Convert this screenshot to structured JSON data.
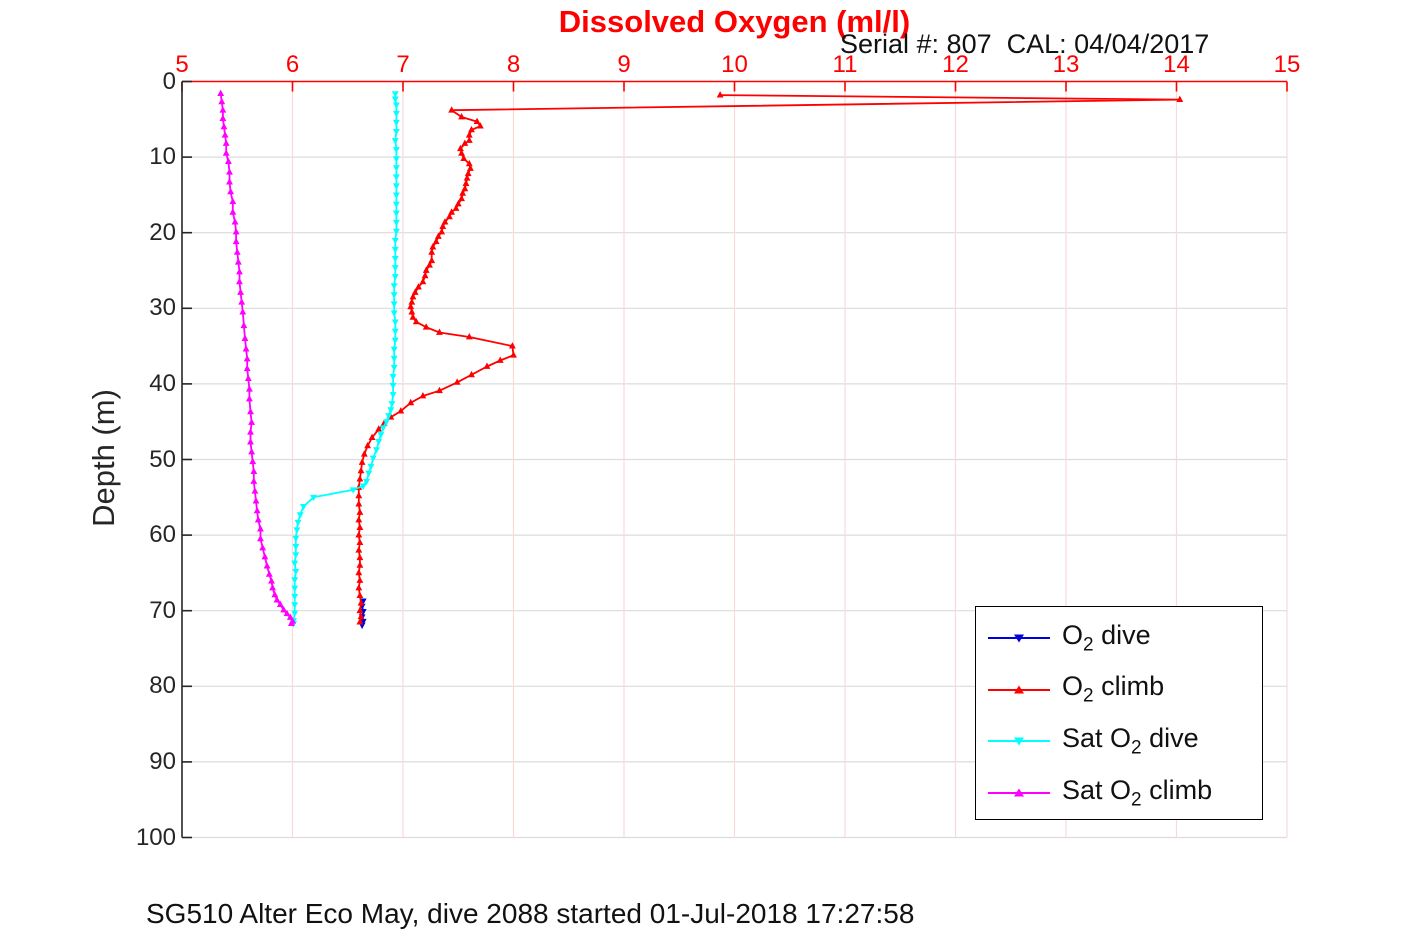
{
  "figure": {
    "title": "Dissolved Oxygen (ml/l)",
    "serial_annotation": "Serial #: 807  CAL: 04/04/2017",
    "caption": "SG510 Alter Eco May, dive 2088 started 01-Jul-2018 17:27:58"
  },
  "colors": {
    "x_axis": "#ff0000",
    "y_axis": "#262626",
    "x_grid": "#fbd9d9",
    "y_grid": "#dcdcdc",
    "o2_dive": "#0000dd",
    "o2_climb": "#ff0000",
    "sat_o2_dive": "#00ffff",
    "sat_o2_climb": "#ff00ff"
  },
  "legend": {
    "entries": [
      {
        "id": "o2-dive",
        "color": "#0000dd",
        "marker": "down",
        "prefix": "O",
        "sub": "2",
        "suffix": " dive"
      },
      {
        "id": "o2-climb",
        "color": "#ff0000",
        "marker": "up",
        "prefix": "O",
        "sub": "2",
        "suffix": " climb"
      },
      {
        "id": "sat-o2-dive",
        "color": "#00ffff",
        "marker": "down",
        "prefix": "Sat O",
        "sub": "2",
        "suffix": " dive"
      },
      {
        "id": "sat-o2-climb",
        "color": "#ff00ff",
        "marker": "up",
        "prefix": "Sat O",
        "sub": "2",
        "suffix": " climb"
      }
    ]
  },
  "chart_data": {
    "type": "line",
    "title": "Dissolved Oxygen (ml/l)",
    "xlabel": "Dissolved Oxygen (ml/l)",
    "ylabel": "Depth (m)",
    "xlim": [
      5,
      15
    ],
    "ylim": [
      0,
      100
    ],
    "y_axis_reversed": true,
    "x_ticks": [
      5,
      6,
      7,
      8,
      9,
      10,
      11,
      12,
      13,
      14,
      15
    ],
    "y_ticks": [
      0,
      10,
      20,
      30,
      40,
      50,
      60,
      70,
      80,
      90,
      100
    ],
    "grid": true,
    "legend_position": "inside lower right",
    "series": [
      {
        "name": "O2 dive",
        "id": "o2-dive",
        "color": "#0000dd",
        "marker": "down",
        "points": [
          [
            6.64,
            68.7
          ],
          [
            6.63,
            69.4
          ],
          [
            6.64,
            70.1
          ],
          [
            6.63,
            70.8
          ],
          [
            6.64,
            71.4
          ],
          [
            6.63,
            71.9
          ]
        ]
      },
      {
        "name": "O2 climb",
        "id": "o2-climb",
        "color": "#ff0000",
        "marker": "up",
        "points": [
          [
            9.87,
            1.8
          ],
          [
            14.03,
            2.4
          ],
          [
            7.44,
            3.8
          ],
          [
            7.53,
            4.7
          ],
          [
            7.67,
            5.3
          ],
          [
            7.7,
            5.9
          ],
          [
            7.62,
            6.4
          ],
          [
            7.6,
            7.1
          ],
          [
            7.6,
            7.8
          ],
          [
            7.56,
            8.2
          ],
          [
            7.52,
            8.9
          ],
          [
            7.53,
            9.5
          ],
          [
            7.55,
            10.2
          ],
          [
            7.6,
            10.9
          ],
          [
            7.61,
            11.5
          ],
          [
            7.59,
            12.2
          ],
          [
            7.58,
            12.8
          ],
          [
            7.57,
            13.5
          ],
          [
            7.56,
            14.2
          ],
          [
            7.54,
            14.8
          ],
          [
            7.53,
            15.5
          ],
          [
            7.5,
            16.2
          ],
          [
            7.48,
            16.8
          ],
          [
            7.44,
            17.3
          ],
          [
            7.42,
            17.9
          ],
          [
            7.38,
            18.6
          ],
          [
            7.36,
            19.2
          ],
          [
            7.35,
            19.9
          ],
          [
            7.32,
            20.5
          ],
          [
            7.3,
            21.2
          ],
          [
            7.27,
            21.9
          ],
          [
            7.26,
            22.6
          ],
          [
            7.26,
            23.7
          ],
          [
            7.24,
            24.3
          ],
          [
            7.21,
            25.0
          ],
          [
            7.2,
            25.7
          ],
          [
            7.18,
            26.5
          ],
          [
            7.14,
            27.2
          ],
          [
            7.11,
            27.9
          ],
          [
            7.09,
            28.5
          ],
          [
            7.08,
            29.2
          ],
          [
            7.07,
            29.8
          ],
          [
            7.08,
            30.5
          ],
          [
            7.09,
            31.2
          ],
          [
            7.12,
            31.8
          ],
          [
            7.21,
            32.5
          ],
          [
            7.33,
            33.2
          ],
          [
            7.6,
            33.8
          ],
          [
            7.99,
            35.0
          ],
          [
            8.0,
            36.2
          ],
          [
            7.88,
            36.9
          ],
          [
            7.76,
            37.7
          ],
          [
            7.62,
            38.8
          ],
          [
            7.49,
            39.8
          ],
          [
            7.33,
            40.9
          ],
          [
            7.18,
            41.6
          ],
          [
            7.07,
            42.5
          ],
          [
            6.98,
            43.6
          ],
          [
            6.89,
            44.4
          ],
          [
            6.83,
            45.2
          ],
          [
            6.78,
            46.0
          ],
          [
            6.72,
            47.1
          ],
          [
            6.68,
            48.2
          ],
          [
            6.65,
            49.3
          ],
          [
            6.63,
            50.4
          ],
          [
            6.62,
            51.5
          ],
          [
            6.61,
            52.6
          ],
          [
            6.6,
            53.7
          ],
          [
            6.6,
            54.8
          ],
          [
            6.6,
            55.9
          ],
          [
            6.61,
            57.0
          ],
          [
            6.6,
            58.0
          ],
          [
            6.61,
            59.0
          ],
          [
            6.6,
            60.0
          ],
          [
            6.61,
            61.0
          ],
          [
            6.6,
            62.0
          ],
          [
            6.61,
            63.0
          ],
          [
            6.61,
            64.0
          ],
          [
            6.6,
            65.0
          ],
          [
            6.61,
            66.0
          ],
          [
            6.6,
            67.0
          ],
          [
            6.61,
            68.0
          ],
          [
            6.62,
            69.0
          ],
          [
            6.61,
            70.0
          ],
          [
            6.62,
            70.8
          ],
          [
            6.61,
            71.5
          ]
        ]
      },
      {
        "name": "Sat O2 dive",
        "id": "sat-o2-dive",
        "color": "#00ffff",
        "marker": "down",
        "points": [
          [
            6.93,
            1.6
          ],
          [
            6.93,
            2.3
          ],
          [
            6.94,
            3.1
          ],
          [
            6.94,
            4.2
          ],
          [
            6.94,
            5.4
          ],
          [
            6.94,
            6.6
          ],
          [
            6.93,
            7.8
          ],
          [
            6.94,
            9.0
          ],
          [
            6.94,
            10.2
          ],
          [
            6.94,
            11.4
          ],
          [
            6.94,
            12.6
          ],
          [
            6.94,
            13.8
          ],
          [
            6.94,
            15.0
          ],
          [
            6.94,
            16.2
          ],
          [
            6.94,
            17.4
          ],
          [
            6.94,
            18.6
          ],
          [
            6.94,
            19.8
          ],
          [
            6.93,
            21.0
          ],
          [
            6.93,
            22.2
          ],
          [
            6.93,
            23.4
          ],
          [
            6.93,
            24.6
          ],
          [
            6.93,
            25.8
          ],
          [
            6.92,
            27.0
          ],
          [
            6.92,
            28.2
          ],
          [
            6.92,
            29.4
          ],
          [
            6.92,
            30.6
          ],
          [
            6.93,
            31.8
          ],
          [
            6.93,
            33.0
          ],
          [
            6.93,
            34.2
          ],
          [
            6.92,
            35.4
          ],
          [
            6.92,
            36.6
          ],
          [
            6.92,
            37.8
          ],
          [
            6.91,
            39.0
          ],
          [
            6.91,
            40.2
          ],
          [
            6.91,
            41.4
          ],
          [
            6.9,
            42.6
          ],
          [
            6.89,
            43.4
          ],
          [
            6.87,
            44.2
          ],
          [
            6.85,
            45.0
          ],
          [
            6.82,
            45.8
          ],
          [
            6.8,
            46.7
          ],
          [
            6.78,
            47.6
          ],
          [
            6.76,
            48.7
          ],
          [
            6.73,
            49.8
          ],
          [
            6.71,
            50.9
          ],
          [
            6.69,
            51.8
          ],
          [
            6.67,
            52.9
          ],
          [
            6.64,
            53.5
          ],
          [
            6.55,
            54.0
          ],
          [
            6.19,
            55.0
          ],
          [
            6.1,
            56.2
          ],
          [
            6.07,
            57.3
          ],
          [
            6.05,
            58.3
          ],
          [
            6.04,
            59.3
          ],
          [
            6.03,
            60.4
          ],
          [
            6.03,
            61.5
          ],
          [
            6.03,
            62.6
          ],
          [
            6.02,
            63.7
          ],
          [
            6.03,
            64.8
          ],
          [
            6.02,
            65.9
          ],
          [
            6.02,
            67.0
          ],
          [
            6.02,
            68.1
          ],
          [
            6.02,
            69.2
          ],
          [
            6.02,
            70.3
          ],
          [
            6.01,
            71.3
          ],
          [
            6.01,
            71.7
          ]
        ]
      },
      {
        "name": "Sat O2 climb",
        "id": "sat-o2-climb",
        "color": "#ff00ff",
        "marker": "up",
        "points": [
          [
            5.35,
            1.6
          ],
          [
            5.36,
            2.7
          ],
          [
            5.37,
            3.8
          ],
          [
            5.37,
            4.9
          ],
          [
            5.38,
            6.0
          ],
          [
            5.39,
            7.1
          ],
          [
            5.4,
            8.2
          ],
          [
            5.4,
            9.5
          ],
          [
            5.42,
            10.6
          ],
          [
            5.43,
            12.0
          ],
          [
            5.43,
            13.3
          ],
          [
            5.44,
            14.6
          ],
          [
            5.46,
            15.9
          ],
          [
            5.46,
            17.3
          ],
          [
            5.48,
            18.6
          ],
          [
            5.49,
            19.9
          ],
          [
            5.49,
            21.2
          ],
          [
            5.5,
            22.6
          ],
          [
            5.51,
            23.9
          ],
          [
            5.52,
            25.2
          ],
          [
            5.52,
            26.5
          ],
          [
            5.53,
            27.9
          ],
          [
            5.54,
            29.2
          ],
          [
            5.55,
            30.5
          ],
          [
            5.56,
            32.3
          ],
          [
            5.57,
            34.0
          ],
          [
            5.58,
            35.4
          ],
          [
            5.59,
            36.7
          ],
          [
            5.59,
            38.0
          ],
          [
            5.6,
            39.3
          ],
          [
            5.61,
            40.7
          ],
          [
            5.61,
            42.0
          ],
          [
            5.62,
            43.7
          ],
          [
            5.63,
            45.1
          ],
          [
            5.62,
            46.4
          ],
          [
            5.62,
            47.7
          ],
          [
            5.63,
            49.0
          ],
          [
            5.64,
            50.3
          ],
          [
            5.65,
            51.6
          ],
          [
            5.65,
            52.9
          ],
          [
            5.66,
            54.2
          ],
          [
            5.67,
            55.5
          ],
          [
            5.68,
            56.8
          ],
          [
            5.69,
            58.0
          ],
          [
            5.71,
            59.2
          ],
          [
            5.71,
            60.5
          ],
          [
            5.73,
            61.7
          ],
          [
            5.75,
            62.9
          ],
          [
            5.77,
            64.1
          ],
          [
            5.79,
            65.2
          ],
          [
            5.81,
            66.1
          ],
          [
            5.82,
            67.0
          ],
          [
            5.84,
            67.9
          ],
          [
            5.86,
            68.6
          ],
          [
            5.89,
            69.2
          ],
          [
            5.92,
            69.9
          ],
          [
            5.95,
            70.4
          ],
          [
            5.98,
            70.9
          ],
          [
            6.0,
            71.4
          ],
          [
            5.99,
            71.7
          ]
        ]
      }
    ]
  }
}
